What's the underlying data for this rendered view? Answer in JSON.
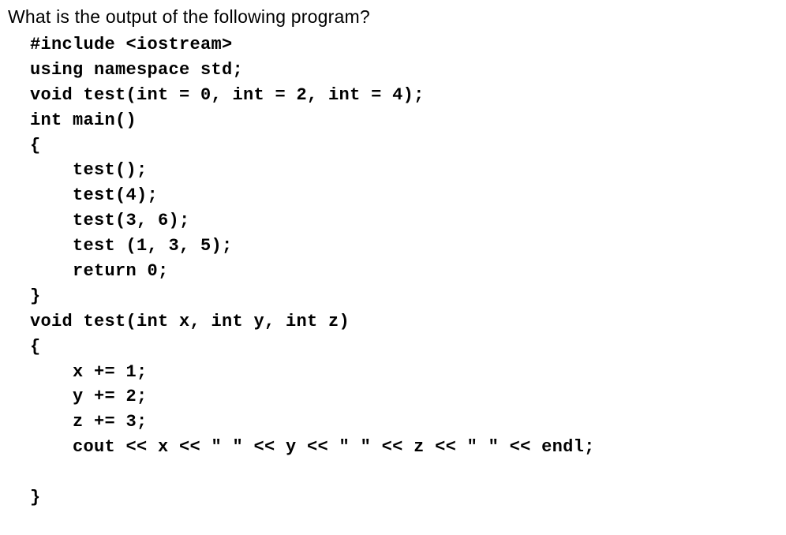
{
  "question": "What is the output of the following program?",
  "code": {
    "l01": "#include <iostream>",
    "l02": "using namespace std;",
    "l03": "void test(int = 0, int = 2, int = 4);",
    "l04": "int main()",
    "l05": "{",
    "l06": "    test();",
    "l07": "    test(4);",
    "l08": "    test(3, 6);",
    "l09": "    test (1, 3, 5);",
    "l10": "    return 0;",
    "l11": "}",
    "l12": "void test(int x, int y, int z)",
    "l13": "{",
    "l14": "    x += 1;",
    "l15": "    y += 2;",
    "l16": "    z += 3;",
    "l17": "    cout << x << \" \" << y << \" \" << z << \" \" << endl;",
    "l18": "",
    "l19": "}"
  }
}
